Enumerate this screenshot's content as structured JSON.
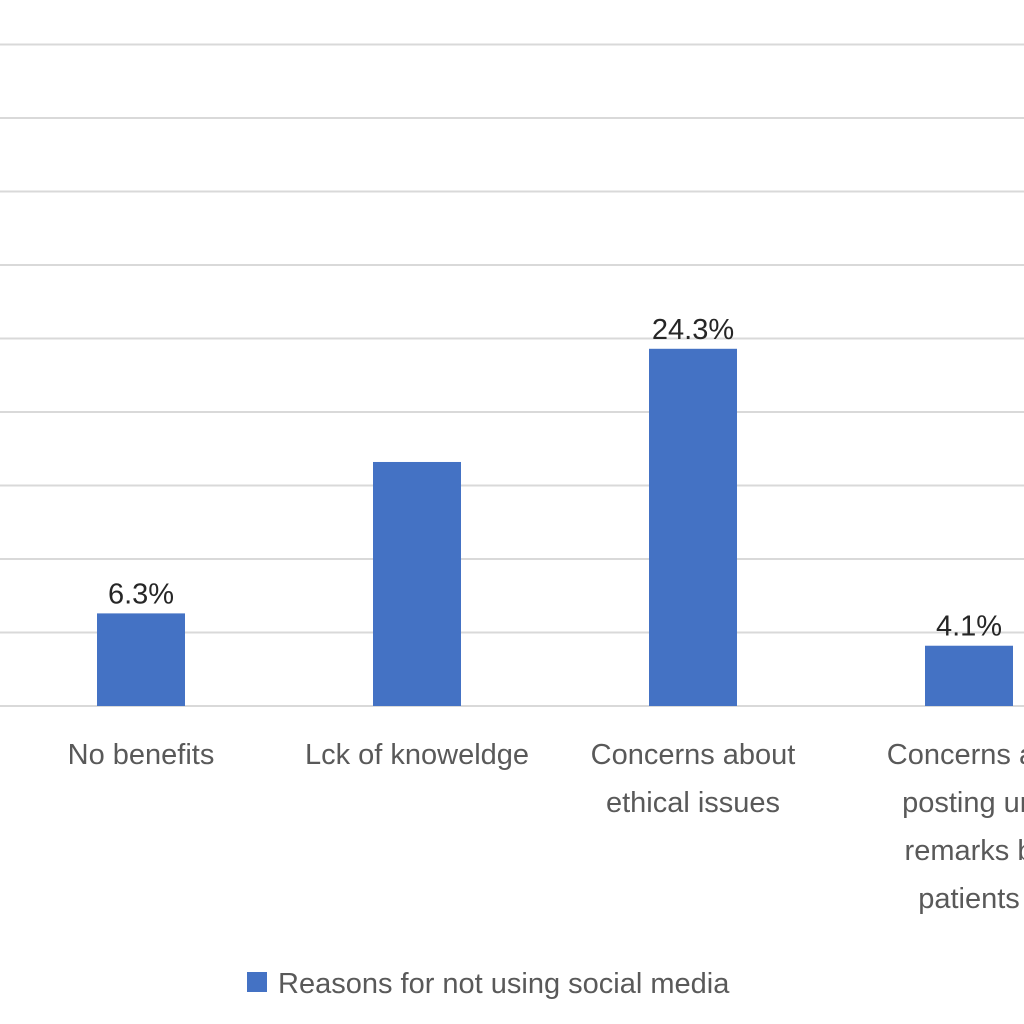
{
  "chart_data": {
    "type": "bar",
    "categories": [
      [
        "No benefits"
      ],
      [
        "Lck of knoweldge"
      ],
      [
        "Concerns about",
        "ethical issues"
      ],
      [
        "Concerns ab",
        "posting un",
        "remarks b",
        "patients"
      ]
    ],
    "values": [
      6.3,
      16.6,
      24.3,
      4.1
    ],
    "data_labels": [
      "6.3%",
      "",
      "24.3%",
      "4.1%"
    ],
    "series": [
      {
        "name": "Reasons for not using social media",
        "color": "#4472c4"
      }
    ],
    "ylim": [
      0,
      45
    ],
    "y_gridline_step": 5,
    "grid": true,
    "legend_placement": "bottom",
    "title": "",
    "xlabel": "",
    "ylabel": ""
  },
  "legend": {
    "label": "Reasons for not using social media"
  }
}
